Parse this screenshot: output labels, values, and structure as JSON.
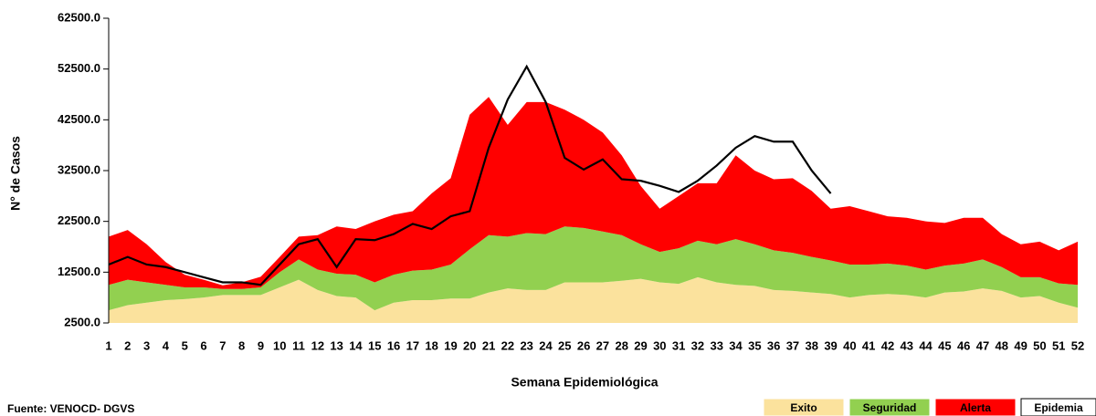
{
  "chart_data": {
    "type": "area",
    "x_label": "Semana Epidemiológica",
    "y_label": "N° de Casos",
    "source": "Fuente: VENOCD- DGVS",
    "categories": [
      1,
      2,
      3,
      4,
      5,
      6,
      7,
      8,
      9,
      10,
      11,
      12,
      13,
      14,
      15,
      16,
      17,
      18,
      19,
      20,
      21,
      22,
      23,
      24,
      25,
      26,
      27,
      28,
      29,
      30,
      31,
      32,
      33,
      34,
      35,
      36,
      37,
      38,
      39,
      40,
      41,
      42,
      43,
      44,
      45,
      46,
      47,
      48,
      49,
      50,
      51,
      52
    ],
    "ylim": [
      2500,
      62500
    ],
    "yticks": [
      {
        "value": 2500,
        "label": "2500.0"
      },
      {
        "value": 12500,
        "label": "12500.0"
      },
      {
        "value": 22500,
        "label": "22500.0"
      },
      {
        "value": 32500,
        "label": "32500.0"
      },
      {
        "value": 42500,
        "label": "42500.0"
      },
      {
        "value": 52500,
        "label": "52500.0"
      },
      {
        "value": 62500,
        "label": "62500.0"
      }
    ],
    "grid": false,
    "legend": "bottom-right",
    "series": [
      {
        "name": "Exito",
        "type": "area",
        "color": "#fbe29d",
        "values": [
          5000,
          6000,
          6500,
          7000,
          7200,
          7500,
          8000,
          8000,
          8000,
          9500,
          11000,
          9000,
          7800,
          7500,
          5000,
          6500,
          7000,
          7000,
          7300,
          7300,
          8500,
          9300,
          9000,
          9000,
          10500,
          10500,
          10500,
          10800,
          11200,
          10500,
          10200,
          11500,
          10500,
          10000,
          9800,
          9000,
          8800,
          8500,
          8200,
          7500,
          8000,
          8200,
          8000,
          7500,
          8500,
          8700,
          9300,
          8800,
          7500,
          7800,
          6500,
          5500
        ]
      },
      {
        "name": "Seguridad",
        "type": "area",
        "color": "#92d050",
        "values": [
          5000,
          5000,
          4000,
          3000,
          2300,
          2000,
          1200,
          1200,
          1500,
          3000,
          4000,
          4000,
          4400,
          4500,
          5500,
          5500,
          5800,
          6000,
          6700,
          9700,
          11300,
          10200,
          11200,
          11000,
          11000,
          10700,
          10000,
          9000,
          6800,
          6000,
          7000,
          7200,
          7500,
          9000,
          8200,
          7800,
          7500,
          7000,
          6600,
          6500,
          6000,
          6000,
          5800,
          5500,
          5300,
          5500,
          5700,
          4700,
          4000,
          3700,
          3800,
          4500
        ]
      },
      {
        "name": "Alerta",
        "type": "area",
        "color": "#ff0000",
        "values": [
          9500,
          9800,
          7500,
          4500,
          2500,
          1500,
          700,
          1300,
          2100,
          3000,
          4500,
          6800,
          9300,
          9000,
          12000,
          11800,
          11700,
          15000,
          17000,
          26500,
          27200,
          22000,
          25800,
          26000,
          23000,
          21300,
          19500,
          15700,
          11500,
          8500,
          10300,
          11300,
          12000,
          16500,
          14500,
          14000,
          14700,
          13000,
          10200,
          11500,
          10500,
          9300,
          9400,
          9500,
          8400,
          9000,
          8200,
          6500,
          6500,
          7000,
          6500,
          8500
        ]
      },
      {
        "name": "Epidemia",
        "type": "line",
        "color": "#000000",
        "values": [
          14000,
          15500,
          14000,
          13500,
          12500,
          11500,
          10500,
          10500,
          10000,
          14000,
          18000,
          19000,
          13500,
          19000,
          18800,
          20000,
          22000,
          21000,
          23500,
          24500,
          37000,
          46500,
          53000,
          46000,
          35000,
          32700,
          34700,
          30800,
          30500,
          29500,
          28300,
          30500,
          33500,
          37000,
          39300,
          38200,
          38200,
          32500,
          28000,
          null,
          null,
          null,
          null,
          null,
          null,
          null,
          null,
          null,
          null,
          null,
          null,
          null
        ]
      }
    ]
  }
}
